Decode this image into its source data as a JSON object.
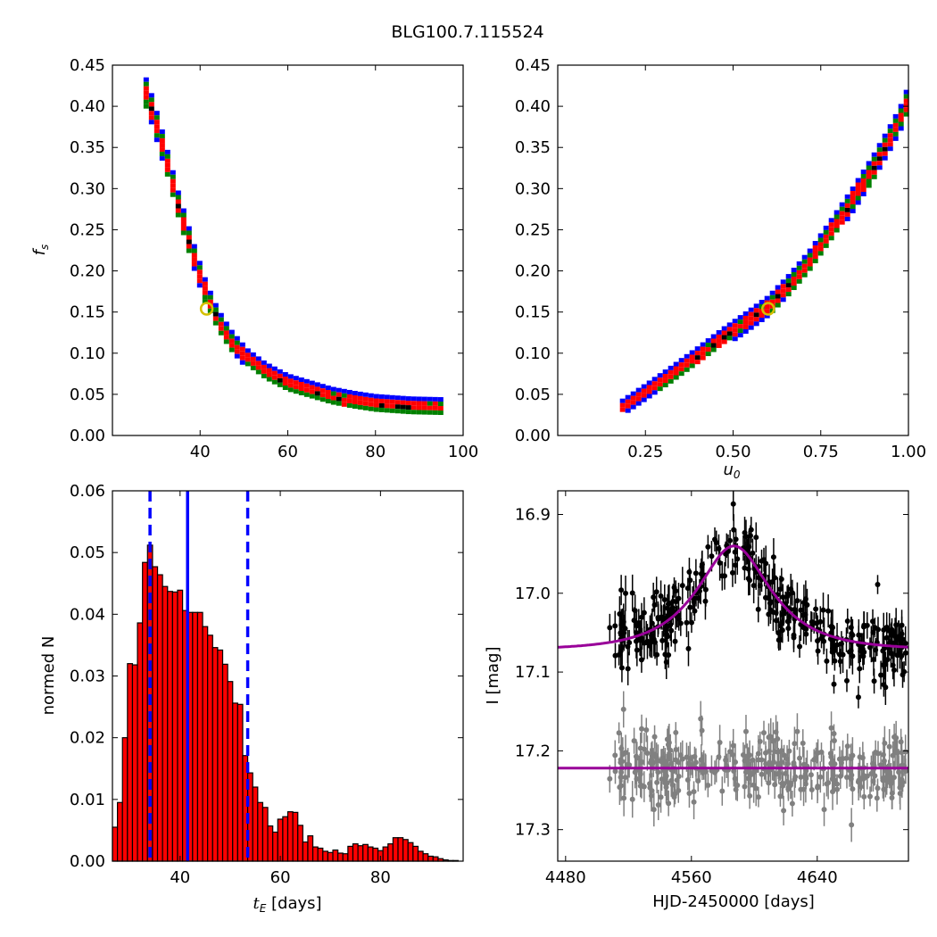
{
  "figure": {
    "suptitle": "BLG100.7.115524"
  },
  "colors": {
    "level1": "#0000ff",
    "level2": "#008000",
    "level3": "#ff0000",
    "level4": "#000000",
    "best_fit_marker": "#d4c000",
    "hist_bar": "#ff0000",
    "hist_edge": "#000000",
    "hist_median_line": "#0000ff",
    "event_points": "#000000",
    "control_points": "#808080",
    "model_curve": "#990099"
  },
  "chart_data": [
    {
      "type": "heatmap",
      "panel": "top-left",
      "description_axes": "f_s vs t_E posterior density",
      "xlabel": "",
      "ylabel": "f_s",
      "xlim": [
        20,
        100
      ],
      "ylim": [
        0,
        0.45
      ],
      "xticks": [
        "40",
        "60",
        "80",
        "100"
      ],
      "yticks": [
        "0.00",
        "0.05",
        "0.10",
        "0.15",
        "0.20",
        "0.25",
        "0.30",
        "0.35",
        "0.40",
        "0.45"
      ],
      "ridge": [
        {
          "x": 27.7,
          "y": 0.415
        },
        {
          "x": 29.0,
          "y": 0.395
        },
        {
          "x": 31.0,
          "y": 0.36
        },
        {
          "x": 33.0,
          "y": 0.32
        },
        {
          "x": 35.0,
          "y": 0.28
        },
        {
          "x": 37.0,
          "y": 0.245
        },
        {
          "x": 39.0,
          "y": 0.21
        },
        {
          "x": 41.5,
          "y": 0.17
        },
        {
          "x": 44.0,
          "y": 0.14
        },
        {
          "x": 47.0,
          "y": 0.115
        },
        {
          "x": 50.0,
          "y": 0.097
        },
        {
          "x": 55.0,
          "y": 0.077
        },
        {
          "x": 60.0,
          "y": 0.063
        },
        {
          "x": 65.0,
          "y": 0.055
        },
        {
          "x": 70.0,
          "y": 0.047
        },
        {
          "x": 75.0,
          "y": 0.042
        },
        {
          "x": 80.0,
          "y": 0.038
        },
        {
          "x": 88.0,
          "y": 0.035
        },
        {
          "x": 96.0,
          "y": 0.034
        }
      ],
      "best_fit": {
        "x": 41.5,
        "y": 0.154
      }
    },
    {
      "type": "heatmap",
      "panel": "top-right",
      "description_axes": "f_s vs u_0 posterior density",
      "xlabel": "u_0",
      "ylabel": "",
      "xlim": [
        0,
        1.0
      ],
      "ylim": [
        0,
        0.45
      ],
      "xticks": [
        "0.25",
        "0.50",
        "0.75",
        "1.00"
      ],
      "yticks": [
        "0.00",
        "0.05",
        "0.10",
        "0.15",
        "0.20",
        "0.25",
        "0.30",
        "0.35",
        "0.40",
        "0.45"
      ],
      "ridge": [
        {
          "x": 0.185,
          "y": 0.034
        },
        {
          "x": 0.25,
          "y": 0.052
        },
        {
          "x": 0.32,
          "y": 0.072
        },
        {
          "x": 0.4,
          "y": 0.096
        },
        {
          "x": 0.47,
          "y": 0.118
        },
        {
          "x": 0.54,
          "y": 0.138
        },
        {
          "x": 0.6,
          "y": 0.156
        },
        {
          "x": 0.66,
          "y": 0.182
        },
        {
          "x": 0.72,
          "y": 0.212
        },
        {
          "x": 0.78,
          "y": 0.248
        },
        {
          "x": 0.84,
          "y": 0.285
        },
        {
          "x": 0.9,
          "y": 0.325
        },
        {
          "x": 0.95,
          "y": 0.362
        },
        {
          "x": 0.985,
          "y": 0.39
        },
        {
          "x": 1.0,
          "y": 0.41
        }
      ],
      "best_fit": {
        "x": 0.6,
        "y": 0.154
      }
    },
    {
      "type": "bar",
      "panel": "bottom-left",
      "xlabel": "t_E [days]",
      "ylabel": "normed N",
      "xlim": [
        26.5,
        96.5
      ],
      "ylim": [
        0,
        0.06
      ],
      "xticks": [
        "40",
        "60",
        "80"
      ],
      "yticks": [
        "0.00",
        "0.01",
        "0.02",
        "0.03",
        "0.04",
        "0.05",
        "0.06"
      ],
      "bin_start": 26.5,
      "bin_width": 1.0,
      "values": [
        0.0055,
        0.0095,
        0.02,
        0.032,
        0.0318,
        0.0386,
        0.0484,
        0.0512,
        0.0477,
        0.0464,
        0.0445,
        0.0437,
        0.0436,
        0.0439,
        0.0406,
        0.0403,
        0.0403,
        0.0403,
        0.038,
        0.0366,
        0.0346,
        0.0342,
        0.0319,
        0.0291,
        0.0256,
        0.0254,
        0.0171,
        0.0143,
        0.012,
        0.0095,
        0.0087,
        0.0057,
        0.0047,
        0.0068,
        0.0072,
        0.008,
        0.0079,
        0.0058,
        0.0031,
        0.0041,
        0.0023,
        0.0021,
        0.0016,
        0.0014,
        0.0018,
        0.0013,
        0.0012,
        0.0024,
        0.0028,
        0.0025,
        0.0027,
        0.0023,
        0.0021,
        0.0017,
        0.0023,
        0.0028,
        0.0038,
        0.0038,
        0.0035,
        0.003,
        0.0024,
        0.0016,
        0.0012,
        0.0008,
        0.0007,
        0.0004,
        0.0002,
        0.0001,
        0.0001,
        0.0
      ],
      "median": 41.5,
      "lower": 34.0,
      "upper": 53.5
    },
    {
      "type": "scatter",
      "panel": "bottom-right",
      "xlabel": "HJD-2450000 [days]",
      "ylabel": "I [mag]",
      "xlim": [
        4475,
        4698
      ],
      "ylim": [
        17.34,
        16.87
      ],
      "xticks": [
        "4480",
        "4560",
        "4640"
      ],
      "yticks": [
        "16.9",
        "17.0",
        "17.1",
        "17.2",
        "17.3"
      ],
      "event_model": {
        "baseline": 17.072,
        "peak_mag": 16.94,
        "t0": 4587,
        "tE": 41.5,
        "u0": 0.6
      },
      "control_model": {
        "baseline": 17.222
      },
      "event_data_window": [
        4508,
        4697
      ],
      "event_scatter_sigma": 0.022,
      "control_scatter_sigma": 0.022,
      "n_points": 330
    }
  ]
}
